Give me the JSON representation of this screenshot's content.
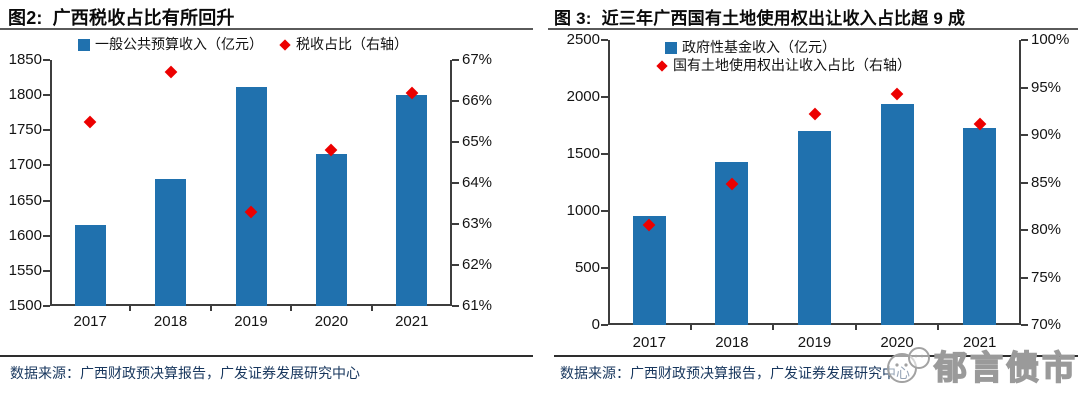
{
  "chart_data": [
    {
      "type": "bar",
      "figure_label": "图2:",
      "title": "广西税收占比有所回升",
      "categories": [
        "2017",
        "2018",
        "2019",
        "2020",
        "2021"
      ],
      "series": [
        {
          "name": "一般公共预算收入（亿元）",
          "type": "bar",
          "axis": "left",
          "values": [
            1615,
            1681,
            1811,
            1716,
            1800
          ]
        },
        {
          "name": "税收占比（右轴）",
          "type": "scatter",
          "axis": "right",
          "unit": "%",
          "values": [
            65.5,
            66.7,
            63.3,
            64.8,
            66.2
          ]
        }
      ],
      "left_axis": {
        "min": 1500,
        "max": 1850,
        "step": 50,
        "ticks": [
          "1850",
          "1800",
          "1750",
          "1700",
          "1650",
          "1600",
          "1550",
          "1500"
        ]
      },
      "right_axis": {
        "min": 61,
        "max": 67,
        "step": 1,
        "ticks": [
          "67%",
          "66%",
          "65%",
          "64%",
          "63%",
          "62%",
          "61%"
        ]
      },
      "grid": false,
      "legend_position": "top",
      "source_label": "数据来源：",
      "source_text": "广西财政预决算报告，广发证券发展研究中心"
    },
    {
      "type": "bar",
      "figure_label": "图 3:",
      "title": "近三年广西国有土地使用权出让收入占比超 9 成",
      "categories": [
        "2017",
        "2018",
        "2019",
        "2020",
        "2021"
      ],
      "series": [
        {
          "name": "政府性基金收入（亿元）",
          "type": "bar",
          "axis": "left",
          "values": [
            960,
            1430,
            1700,
            1940,
            1730
          ]
        },
        {
          "name": "国有土地使用权出让收入占比（右轴）",
          "type": "scatter",
          "axis": "right",
          "unit": "%",
          "values": [
            80.5,
            84.8,
            92.2,
            94.3,
            91.2
          ]
        }
      ],
      "left_axis": {
        "min": 0,
        "max": 2500,
        "step": 500,
        "ticks": [
          "2500",
          "2000",
          "1500",
          "1000",
          "500",
          "0"
        ]
      },
      "right_axis": {
        "min": 70,
        "max": 100,
        "step": 5,
        "ticks": [
          "100%",
          "95%",
          "90%",
          "85%",
          "80%",
          "75%",
          "70%"
        ]
      },
      "grid": false,
      "legend_position": "inside-top",
      "source_label": "数据来源：",
      "source_text": "广西财政预决算报告，广发证券发展研究中心"
    }
  ],
  "watermark": {
    "text": "郁言债市",
    "icon": "chat-bubbles-logo-icon"
  },
  "colors": {
    "bar": "#2071AE",
    "marker": "#EC0000",
    "source_text": "#17365D",
    "rule": "#5A5A5A"
  }
}
